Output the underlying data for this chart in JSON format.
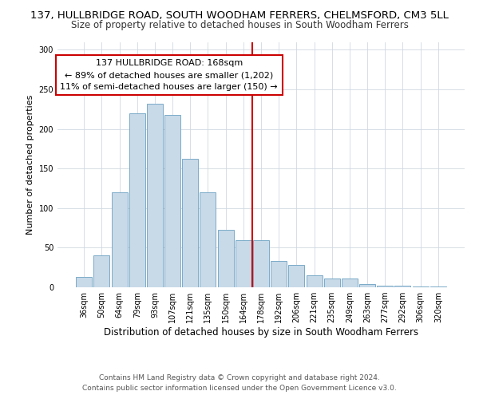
{
  "title": "137, HULLBRIDGE ROAD, SOUTH WOODHAM FERRERS, CHELMSFORD, CM3 5LL",
  "subtitle": "Size of property relative to detached houses in South Woodham Ferrers",
  "xlabel": "Distribution of detached houses by size in South Woodham Ferrers",
  "ylabel": "Number of detached properties",
  "bar_labels": [
    "36sqm",
    "50sqm",
    "64sqm",
    "79sqm",
    "93sqm",
    "107sqm",
    "121sqm",
    "135sqm",
    "150sqm",
    "164sqm",
    "178sqm",
    "192sqm",
    "206sqm",
    "221sqm",
    "235sqm",
    "249sqm",
    "263sqm",
    "277sqm",
    "292sqm",
    "306sqm",
    "320sqm"
  ],
  "bar_heights": [
    13,
    40,
    120,
    220,
    232,
    218,
    162,
    120,
    73,
    59,
    59,
    33,
    28,
    15,
    11,
    11,
    4,
    2,
    2,
    1,
    1
  ],
  "bar_color": "#c8d9e8",
  "bar_edge_color": "#7aaac8",
  "vline_x": 9.5,
  "vline_color": "#cc0000",
  "annotation_title": "137 HULLBRIDGE ROAD: 168sqm",
  "annotation_line1": "← 89% of detached houses are smaller (1,202)",
  "annotation_line2": "11% of semi-detached houses are larger (150) →",
  "annotation_box_color": "#ffffff",
  "annotation_box_edge": "#cc0000",
  "ylim": [
    0,
    310
  ],
  "yticks": [
    0,
    50,
    100,
    150,
    200,
    250,
    300
  ],
  "footer1": "Contains HM Land Registry data © Crown copyright and database right 2024.",
  "footer2": "Contains public sector information licensed under the Open Government Licence v3.0.",
  "title_fontsize": 9.5,
  "subtitle_fontsize": 8.5,
  "xlabel_fontsize": 8.5,
  "ylabel_fontsize": 8,
  "tick_fontsize": 7,
  "annotation_fontsize": 8,
  "footer_fontsize": 6.5,
  "bg_color": "#ffffff"
}
